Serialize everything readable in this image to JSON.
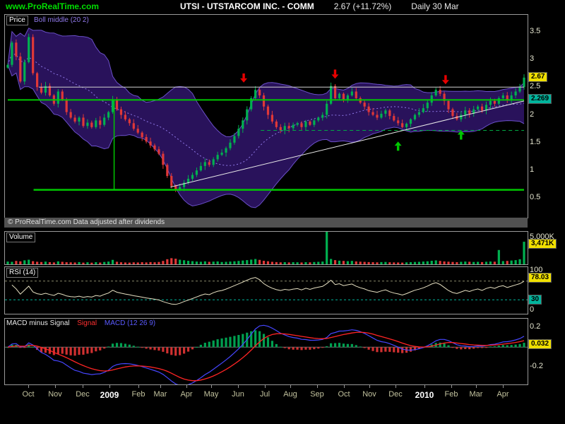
{
  "header": {
    "site": "www.ProRealTime.com",
    "title": "UTSI - UTSTARCOM INC. - COMM",
    "price": "2.67 (+11.72%)",
    "period": "Daily 30 Mar"
  },
  "price_panel": {
    "tab": "Price",
    "boll_label": "Boll middle (20 2)",
    "ticks": [
      {
        "label": "3.5",
        "value": 3.5
      },
      {
        "label": "3",
        "value": 3.0
      },
      {
        "label": "2.5",
        "value": 2.5
      },
      {
        "label": "2",
        "value": 2.0
      },
      {
        "label": "1.5",
        "value": 1.5
      },
      {
        "label": "1",
        "value": 1.0
      },
      {
        "label": "0.5",
        "value": 0.5
      }
    ],
    "last_label": "2.67",
    "level_label": "2.269",
    "copyright": "© ProRealTime.com Data adjusted after dividends"
  },
  "volume_panel": {
    "tab": "Volume",
    "max_label": "5.000K",
    "last_label": "3,471K"
  },
  "rsi_panel": {
    "tab": "RSI (14)",
    "top_label": "100",
    "bottom_label": "0",
    "last_label": "78.03",
    "level_label": "30"
  },
  "macd_panel": {
    "tab_main": "MACD minus Signal",
    "tab_signal": "Signal",
    "tab_macd": "MACD (12 26 9)",
    "pos_label": "0.2",
    "neg_label": "-0.2",
    "last_label": "0.032"
  },
  "x_axis": {
    "labels": [
      {
        "text": "Oct",
        "t": 0.041,
        "year": false
      },
      {
        "text": "Nov",
        "t": 0.093,
        "year": false
      },
      {
        "text": "Dec",
        "t": 0.147,
        "year": false
      },
      {
        "text": "2009",
        "t": 0.199,
        "year": true
      },
      {
        "text": "Feb",
        "t": 0.255,
        "year": false
      },
      {
        "text": "Mar",
        "t": 0.297,
        "year": false
      },
      {
        "text": "Apr",
        "t": 0.347,
        "year": false
      },
      {
        "text": "May",
        "t": 0.396,
        "year": false
      },
      {
        "text": "Jun",
        "t": 0.448,
        "year": false
      },
      {
        "text": "Jul",
        "t": 0.499,
        "year": false
      },
      {
        "text": "Aug",
        "t": 0.549,
        "year": false
      },
      {
        "text": "Sep",
        "t": 0.601,
        "year": false
      },
      {
        "text": "Oct",
        "t": 0.652,
        "year": false
      },
      {
        "text": "Nov",
        "t": 0.702,
        "year": false
      },
      {
        "text": "Dec",
        "t": 0.753,
        "year": false
      },
      {
        "text": "2010",
        "t": 0.808,
        "year": true
      },
      {
        "text": "Feb",
        "t": 0.86,
        "year": false
      },
      {
        "text": "Mar",
        "t": 0.908,
        "year": false
      },
      {
        "text": "Apr",
        "t": 0.96,
        "year": false
      }
    ]
  },
  "colors": {
    "up": "#00b050",
    "down": "#e03838",
    "boll_fill": "#2c1463",
    "boll_edge": "#6a4fc8",
    "boll_mid": "#8f78e8",
    "rsi": "#e6e0c2",
    "macd_line": "#4646ff",
    "signal_line": "#ff2424",
    "hist_up": "#00a050",
    "hist_down": "#d03030",
    "accent_green": "#00c800",
    "label_yellow": "#f0e000",
    "label_teal": "#00b49c",
    "site_green": "#00dd00"
  },
  "chart_data": [
    {
      "type": "candlestick",
      "title": "UTSI - UTSTARCOM INC. - COMM, Daily, Oct 2008 - Apr 2010",
      "ylabel": "Price",
      "ylim": [
        0.15,
        3.8
      ],
      "indicator": {
        "name": "Bollinger",
        "period": 20,
        "deviations": 2
      },
      "last": 2.67,
      "level": 2.269,
      "close": [
        2.9,
        3.3,
        3.05,
        2.6,
        2.95,
        3.4,
        2.75,
        2.5,
        2.4,
        2.52,
        2.35,
        2.2,
        2.42,
        2.28,
        2.05,
        1.95,
        1.88,
        1.95,
        1.8,
        1.86,
        1.78,
        1.9,
        1.82,
        1.95,
        2.05,
        2.28,
        2.1,
        2.0,
        1.92,
        1.85,
        1.75,
        1.68,
        1.6,
        1.52,
        1.45,
        1.38,
        1.3,
        1.1,
        0.9,
        0.72,
        0.65,
        0.7,
        0.78,
        0.85,
        0.92,
        1.0,
        1.08,
        1.15,
        1.1,
        1.2,
        1.28,
        1.32,
        1.4,
        1.5,
        1.62,
        1.75,
        1.9,
        2.1,
        2.3,
        2.45,
        2.35,
        2.15,
        2.0,
        1.88,
        1.78,
        1.72,
        1.8,
        1.76,
        1.82,
        1.85,
        1.78,
        1.88,
        1.82,
        1.9,
        1.95,
        2.0,
        2.2,
        2.52,
        2.3,
        2.38,
        2.28,
        2.35,
        2.42,
        2.3,
        2.22,
        2.15,
        2.05,
        2.0,
        1.95,
        2.02,
        2.08,
        1.98,
        1.9,
        1.85,
        1.78,
        1.84,
        1.92,
        2.0,
        2.05,
        2.12,
        2.22,
        2.35,
        2.45,
        2.38,
        2.25,
        2.1,
        1.98,
        1.92,
        2.0,
        2.08,
        2.02,
        2.1,
        2.15,
        2.08,
        2.18,
        2.25,
        2.2,
        2.3,
        2.35,
        2.28,
        2.35,
        2.42,
        2.5,
        2.67
      ],
      "lines": [
        {
          "type": "hline",
          "y": 2.269,
          "color": "#00c800",
          "width": 2,
          "x1": 0,
          "x2": 1,
          "style": "solid"
        },
        {
          "type": "hline",
          "y": 0.65,
          "color": "#00c800",
          "width": 2.5,
          "x1": 0.05,
          "x2": 1,
          "style": "solid"
        },
        {
          "type": "hline",
          "y": 2.5,
          "color": "#cfcfcf",
          "width": 1,
          "x1": 0.06,
          "x2": 1,
          "style": "solid"
        },
        {
          "type": "hline",
          "y": 1.72,
          "color": "#00aa44",
          "width": 1,
          "x1": 0.49,
          "x2": 1,
          "style": "dashed"
        },
        {
          "type": "segment",
          "x1": 0.315,
          "y1": 0.7,
          "x2": 1.0,
          "y2": 2.25,
          "color": "#e8e8e8",
          "width": 1
        },
        {
          "type": "vline",
          "x": 0.206,
          "y1": 2.269,
          "y2": 0.65,
          "color": "#00c800",
          "width": 1.5
        }
      ],
      "markers": [
        {
          "dir": "down",
          "color": "#e80000",
          "t": 0.457,
          "price": 2.58
        },
        {
          "dir": "down",
          "color": "#e80000",
          "t": 0.634,
          "price": 2.65
        },
        {
          "dir": "down",
          "color": "#e80000",
          "t": 0.848,
          "price": 2.55
        },
        {
          "dir": "up",
          "color": "#00c800",
          "t": 0.756,
          "price": 1.52
        },
        {
          "dir": "up",
          "color": "#00c800",
          "t": 0.878,
          "price": 1.72
        }
      ]
    },
    {
      "type": "bar",
      "name": "Volume",
      "unit": "K",
      "ylim": [
        0,
        5000
      ],
      "last": 3471,
      "values": [
        420,
        380,
        520,
        460,
        610,
        700,
        480,
        390,
        350,
        410,
        330,
        290,
        450,
        380,
        320,
        300,
        280,
        340,
        260,
        310,
        250,
        330,
        270,
        360,
        420,
        680,
        390,
        310,
        280,
        260,
        300,
        280,
        320,
        290,
        340,
        310,
        360,
        520,
        780,
        940,
        860,
        700,
        620,
        540,
        480,
        420,
        390,
        450,
        380,
        410,
        440,
        350,
        380,
        420,
        460,
        520,
        580,
        640,
        720,
        810,
        680,
        540,
        470,
        380,
        340,
        300,
        330,
        290,
        320,
        310,
        280,
        330,
        300,
        350,
        380,
        420,
        5000,
        820,
        640,
        560,
        520,
        480,
        520,
        440,
        400,
        370,
        340,
        320,
        300,
        340,
        360,
        310,
        290,
        280,
        260,
        300,
        330,
        360,
        380,
        420,
        460,
        540,
        600,
        520,
        440,
        400,
        360,
        330,
        380,
        420,
        390,
        360,
        380,
        340,
        390,
        430,
        400,
        2200,
        490,
        520,
        580,
        640,
        780,
        3471
      ]
    },
    {
      "type": "line",
      "name": "RSI",
      "period": 14,
      "ylim": [
        0,
        100
      ],
      "levels": [
        70,
        30
      ],
      "last": 78.03,
      "computed_from": "close"
    },
    {
      "type": "macd",
      "name": "MACD (12 26 9)",
      "params": [
        12,
        26,
        9
      ],
      "ylim": [
        -0.38,
        0.29
      ],
      "axis_ticks": [
        0.2,
        -0.2
      ],
      "last_histogram": 0.032,
      "computed_from": "close"
    }
  ]
}
